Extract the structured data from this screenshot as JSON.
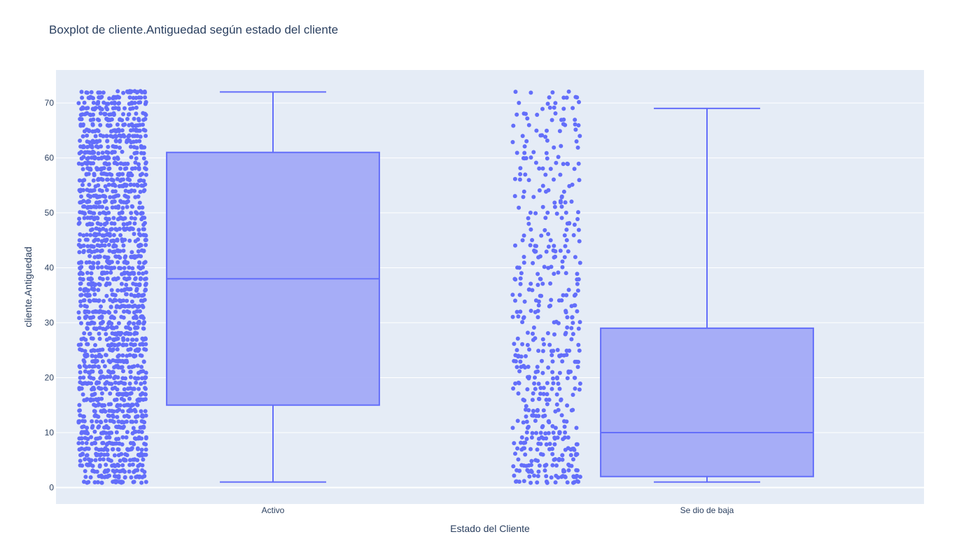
{
  "chart_data": {
    "type": "box",
    "title": "Boxplot de cliente.Antiguedad según estado del cliente",
    "xlabel": "Estado del Cliente",
    "ylabel": "cliente.Antiguedad",
    "categories": [
      "Activo",
      "Se dio de baja"
    ],
    "yticks": [
      0,
      10,
      20,
      30,
      40,
      50,
      60,
      70
    ],
    "ylim": [
      -3,
      76
    ],
    "grid": true,
    "points": "all",
    "boxes": [
      {
        "category": "Activo",
        "min": 1,
        "q1": 15,
        "median": 38,
        "q3": 61,
        "max": 72
      },
      {
        "category": "Se dio de baja",
        "min": 1,
        "q1": 2,
        "median": 10,
        "q3": 29,
        "max": 69
      }
    ],
    "colors": {
      "marker": "#636efa",
      "box_fill": "#a2aaf7",
      "plot_bg": "#e5ecf6",
      "grid": "#ffffff",
      "text": "#2a3f5f"
    }
  }
}
